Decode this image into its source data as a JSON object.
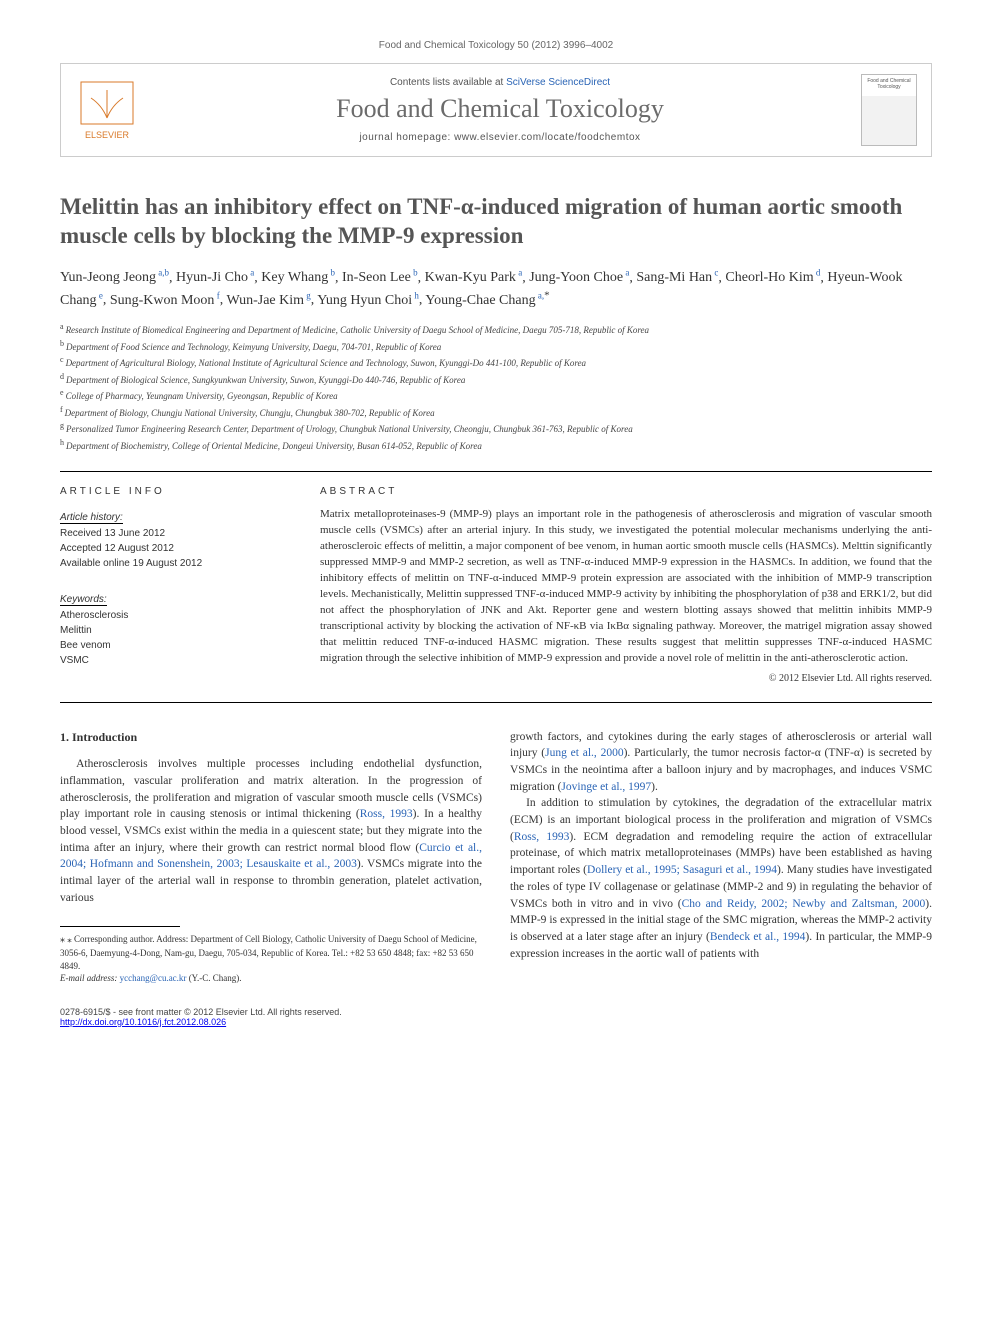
{
  "running_head": "Food and Chemical Toxicology 50 (2012) 3996–4002",
  "masthead": {
    "contents_line_prefix": "Contents lists available at ",
    "contents_line_link": "SciVerse ScienceDirect",
    "journal_name": "Food and Chemical Toxicology",
    "homepage_line": "journal homepage: www.elsevier.com/locate/foodchemtox",
    "publisher_logo_text": "ELSEVIER",
    "cover_title": "Food and Chemical Toxicology"
  },
  "title": "Melittin has an inhibitory effect on TNF-α-induced migration of human aortic smooth muscle cells by blocking the MMP-9 expression",
  "authors": [
    {
      "name": "Yun-Jeong Jeong",
      "aff": "a,b"
    },
    {
      "name": "Hyun-Ji Cho",
      "aff": "a"
    },
    {
      "name": "Key Whang",
      "aff": "b"
    },
    {
      "name": "In-Seon Lee",
      "aff": "b"
    },
    {
      "name": "Kwan-Kyu Park",
      "aff": "a"
    },
    {
      "name": "Jung-Yoon Choe",
      "aff": "a"
    },
    {
      "name": "Sang-Mi Han",
      "aff": "c"
    },
    {
      "name": "Cheorl-Ho Kim",
      "aff": "d"
    },
    {
      "name": "Hyeun-Wook Chang",
      "aff": "e"
    },
    {
      "name": "Sung-Kwon Moon",
      "aff": "f"
    },
    {
      "name": "Wun-Jae Kim",
      "aff": "g"
    },
    {
      "name": "Yung Hyun Choi",
      "aff": "h"
    },
    {
      "name": "Young-Chae Chang",
      "aff": "a,",
      "corresponding": true
    }
  ],
  "affiliations": [
    {
      "key": "a",
      "text": "Research Institute of Biomedical Engineering and Department of Medicine, Catholic University of Daegu School of Medicine, Daegu 705-718, Republic of Korea"
    },
    {
      "key": "b",
      "text": "Department of Food Science and Technology, Keimyung University, Daegu, 704-701, Republic of Korea"
    },
    {
      "key": "c",
      "text": "Department of Agricultural Biology, National Institute of Agricultural Science and Technology, Suwon, Kyunggi-Do 441-100, Republic of Korea"
    },
    {
      "key": "d",
      "text": "Department of Biological Science, Sungkyunkwan University, Suwon, Kyunggi-Do 440-746, Republic of Korea"
    },
    {
      "key": "e",
      "text": "College of Pharmacy, Yeungnam University, Gyeongsan, Republic of Korea"
    },
    {
      "key": "f",
      "text": "Department of Biology, Chungju National University, Chungju, Chungbuk 380-702, Republic of Korea"
    },
    {
      "key": "g",
      "text": "Personalized Tumor Engineering Research Center, Department of Urology, Chungbuk National University, Cheongju, Chungbuk 361-763, Republic of Korea"
    },
    {
      "key": "h",
      "text": "Department of Biochemistry, College of Oriental Medicine, Dongeui University, Busan 614-052, Republic of Korea"
    }
  ],
  "article_info_label": "ARTICLE INFO",
  "abstract_label": "ABSTRACT",
  "history": {
    "head": "Article history:",
    "received": "Received 13 June 2012",
    "accepted": "Accepted 12 August 2012",
    "online": "Available online 19 August 2012"
  },
  "keywords": {
    "head": "Keywords:",
    "items": [
      "Atherosclerosis",
      "Melittin",
      "Bee venom",
      "VSMC"
    ]
  },
  "abstract": "Matrix metalloproteinases-9 (MMP-9) plays an important role in the pathogenesis of atherosclerosis and migration of vascular smooth muscle cells (VSMCs) after an arterial injury. In this study, we investigated the potential molecular mechanisms underlying the anti-atheroscleroic effects of melittin, a major component of bee venom, in human aortic smooth muscle cells (HASMCs). Melttin significantly suppressed MMP-9 and MMP-2 secretion, as well as TNF-α-induced MMP-9 expression in the HASMCs. In addition, we found that the inhibitory effects of melittin on TNF-α-induced MMP-9 protein expression are associated with the inhibition of MMP-9 transcription levels. Mechanistically, Melittin suppressed TNF-α-induced MMP-9 activity by inhibiting the phosphorylation of p38 and ERK1/2, but did not affect the phosphorylation of JNK and Akt. Reporter gene and western blotting assays showed that melittin inhibits MMP-9 transcriptional activity by blocking the activation of NF-κB via IκBα signaling pathway. Moreover, the matrigel migration assay showed that melittin reduced TNF-α-induced HASMC migration. These results suggest that melittin suppresses TNF-α-induced HASMC migration through the selective inhibition of MMP-9 expression and provide a novel role of melittin in the anti-atherosclerotic action.",
  "copyright": "© 2012 Elsevier Ltd. All rights reserved.",
  "intro_heading": "1. Introduction",
  "intro_left_p1": "Atherosclerosis involves multiple processes including endothelial dysfunction, inflammation, vascular proliferation and matrix alteration. In the progression of atherosclerosis, the proliferation and migration of vascular smooth muscle cells (VSMCs) play important role in causing stenosis or intimal thickening (",
  "intro_left_ref1": "Ross, 1993",
  "intro_left_p1b": "). In a healthy blood vessel, VSMCs exist within the media in a quiescent state; but they migrate into the intima after an injury, where their growth can restrict normal blood flow (",
  "intro_left_ref2": "Curcio et al., 2004; Hofmann and Sonenshein, 2003; Lesauskaite et al., 2003",
  "intro_left_p1c": "). VSMCs migrate into the intimal layer of the arterial wall in response to thrombin generation, platelet activation, various",
  "intro_right_p1a": "growth factors, and cytokines during the early stages of atherosclerosis or arterial wall injury (",
  "intro_right_ref1": "Jung et al., 2000",
  "intro_right_p1b": "). Particularly, the tumor necrosis factor-α (TNF-α) is secreted by VSMCs in the neointima after a balloon injury and by macrophages, and induces VSMC migration (",
  "intro_right_ref2": "Jovinge et al., 1997",
  "intro_right_p1c": ").",
  "intro_right_p2a": "In addition to stimulation by cytokines, the degradation of the extracellular matrix (ECM) is an important biological process in the proliferation and migration of VSMCs (",
  "intro_right_ref3": "Ross, 1993",
  "intro_right_p2b": "). ECM degradation and remodeling require the action of extracellular proteinase, of which matrix metalloproteinases (MMPs) have been established as having important roles (",
  "intro_right_ref4": "Dollery et al., 1995; Sasaguri et al., 1994",
  "intro_right_p2c": "). Many studies have investigated the roles of type IV collagenase or gelatinase (MMP-2 and 9) in regulating the behavior of VSMCs both in vitro and in vivo (",
  "intro_right_ref5": "Cho and Reidy, 2002; Newby and Zaltsman, 2000",
  "intro_right_p2d": "). MMP-9 is expressed in the initial stage of the SMC migration, whereas the MMP-2 activity is observed at a later stage after an injury (",
  "intro_right_ref6": "Bendeck et al., 1994",
  "intro_right_p2e": "). In particular, the MMP-9 expression increases in the aortic wall of patients with",
  "footnote": {
    "corr": "⁎ Corresponding author. Address: Department of Cell Biology, Catholic University of Daegu School of Medicine, 3056-6, Daemyung-4-Dong, Nam-gu, Daegu, 705-034, Republic of Korea. Tel.: +82 53 650 4848; fax: +82 53 650 4849.",
    "email_label": "E-mail address:",
    "email": "ycchang@cu.ac.kr",
    "email_person": "(Y.-C. Chang)."
  },
  "page_foot": {
    "left": "0278-6915/$ - see front matter © 2012 Elsevier Ltd. All rights reserved.",
    "doi": "http://dx.doi.org/10.1016/j.fct.2012.08.026"
  }
}
